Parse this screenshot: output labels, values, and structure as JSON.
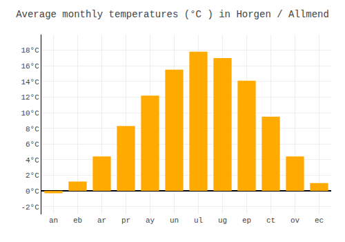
{
  "chart_data": {
    "type": "bar",
    "title": "Average monthly temperatures (°C ) in Horgen / Allmend",
    "categories": [
      "an",
      "eb",
      "ar",
      "pr",
      "ay",
      "un",
      "ul",
      "ug",
      "ep",
      "ct",
      "ov",
      "ec"
    ],
    "values": [
      -0.3,
      1.2,
      4.4,
      8.3,
      12.2,
      15.5,
      17.8,
      17.0,
      14.1,
      9.5,
      4.4,
      1.0
    ],
    "color": "#FFAA00",
    "ylim": [
      -3.0,
      20.0
    ],
    "yticks": [
      {
        "value": -2,
        "label": "-2°C"
      },
      {
        "value": 0,
        "label": "0°C"
      },
      {
        "value": 2,
        "label": "2°C"
      },
      {
        "value": 4,
        "label": "4°C"
      },
      {
        "value": 6,
        "label": "6°C"
      },
      {
        "value": 8,
        "label": "8°C"
      },
      {
        "value": 10,
        "label": "10°C"
      },
      {
        "value": 12,
        "label": "12°C"
      },
      {
        "value": 14,
        "label": "14°C"
      },
      {
        "value": 16,
        "label": "16°C"
      },
      {
        "value": 18,
        "label": "18°C"
      }
    ],
    "grid": true
  }
}
